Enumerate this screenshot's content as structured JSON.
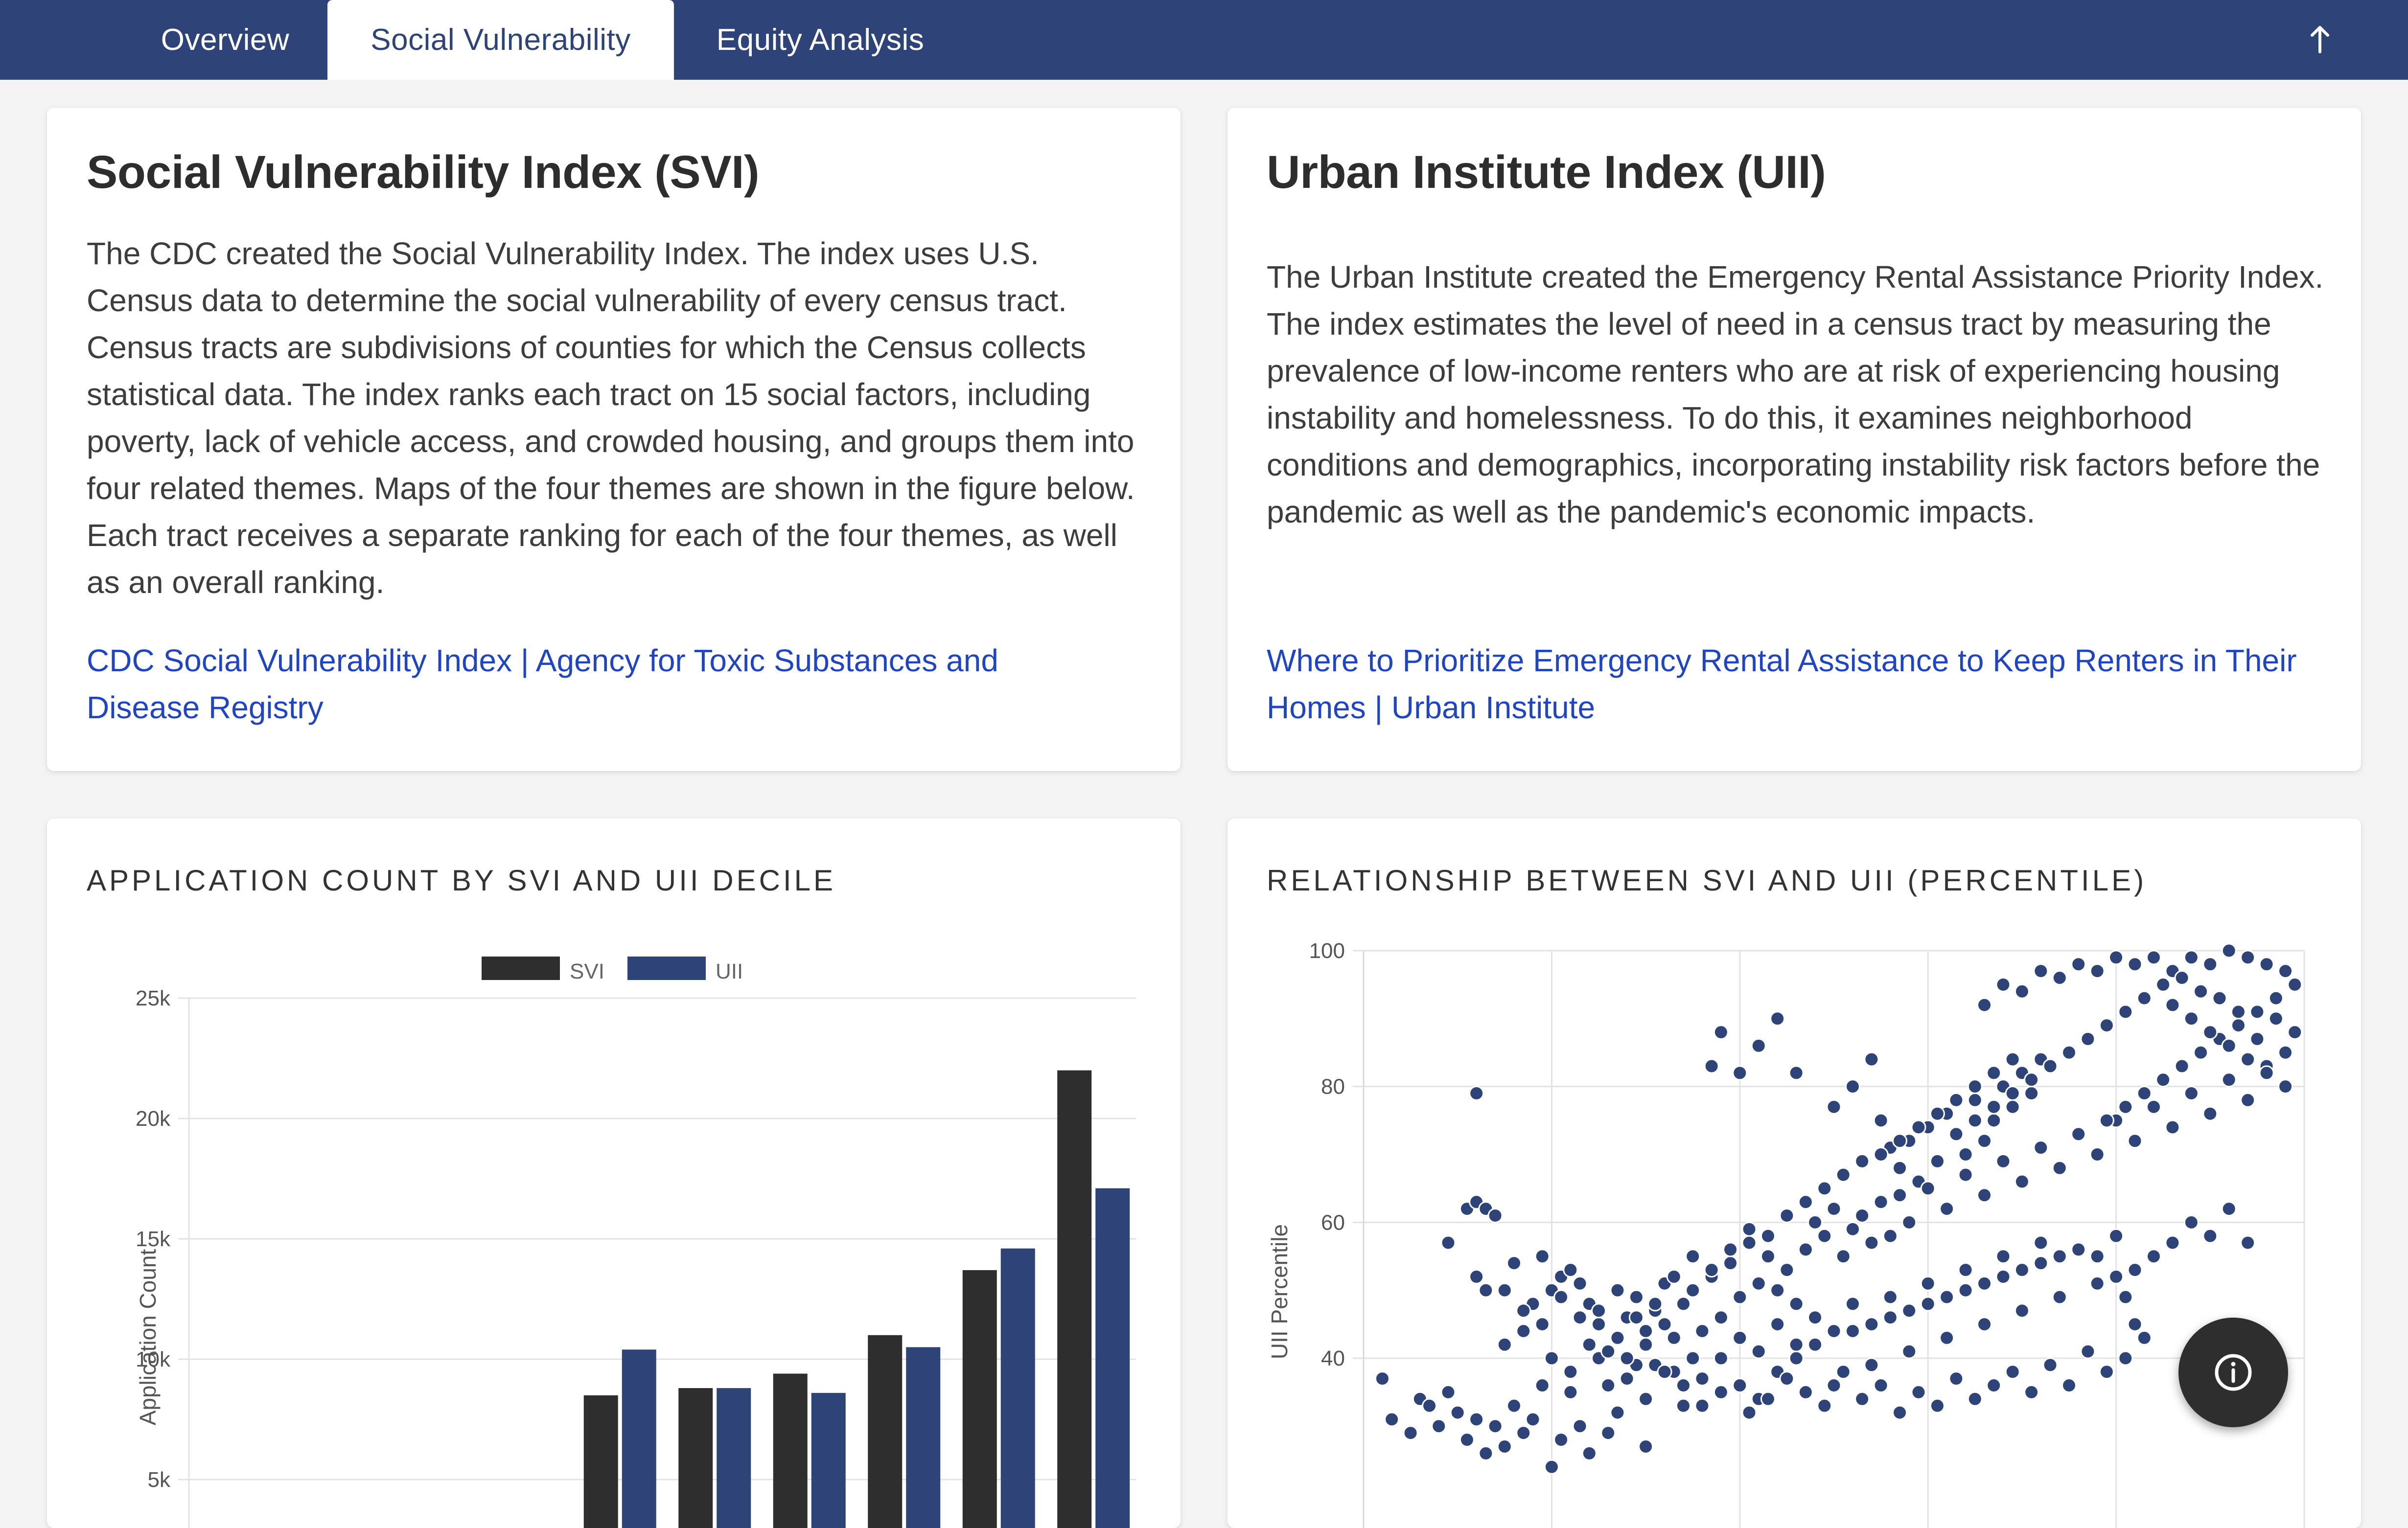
{
  "tabs": [
    {
      "label": "Overview"
    },
    {
      "label": "Social Vulnerability"
    },
    {
      "label": "Equity Analysis"
    }
  ],
  "active_tab": "Social Vulnerability",
  "icons": {
    "scroll_top": "arrow-up-icon",
    "info": "info-icon"
  },
  "colors": {
    "nav": "#2e4378",
    "svi": "#2e2e2e",
    "uii": "#2e4378",
    "link": "#1f45c4"
  },
  "svi_card": {
    "title": "Social Vulnerability Index (SVI)",
    "body": "The CDC created the Social Vulnerability Index. The index uses U.S. Census data to determine the social vulnerability of every census tract. Census tracts are subdivisions of counties for which the Census collects statistical data. The index ranks each tract on 15 social factors, including poverty, lack of vehicle access, and crowded housing, and groups them into four related themes. Maps of the four themes are shown in the figure below. Each tract receives a separate ranking for each of the four themes, as well as an overall ranking.",
    "link": "CDC Social Vulnerability Index | Agency for Toxic Substances and Disease Registry"
  },
  "uii_card": {
    "title": "Urban Institute Index (UII)",
    "body": "The Urban Institute created the Emergency Rental Assistance Priority Index. The index estimates the level of need in a census tract by measuring the prevalence of low-income renters who are at risk of experiencing housing instability and homelessness. To do this, it examines neighborhood conditions and demographics, incorporating instability risk factors before the pandemic as well as the pandemic's economic impacts.",
    "link": "Where to Prioritize Emergency Rental Assistance to Keep Renters in Their Homes | Urban Institute"
  },
  "chart_data": [
    {
      "type": "bar",
      "title": "APPLICATION COUNT BY SVI AND UII DECILE",
      "ylabel": "Application Count",
      "xlabel": "",
      "yticks": [
        "25k",
        "20k",
        "15k",
        "10k",
        "5k"
      ],
      "ytick_values": [
        25000,
        20000,
        15000,
        10000,
        5000
      ],
      "ylim": [
        0,
        25000
      ],
      "legend_position": "top-center",
      "series": [
        {
          "name": "SVI",
          "color": "#2e2e2e",
          "values": [
            null,
            null,
            null,
            null,
            8500,
            8800,
            9400,
            11000,
            13700,
            22000
          ]
        },
        {
          "name": "UII",
          "color": "#2e4378",
          "values": [
            null,
            null,
            null,
            null,
            10400,
            8800,
            8600,
            10500,
            14600,
            17100
          ]
        }
      ],
      "grid": true
    },
    {
      "type": "scatter",
      "title": "RELATIONSHIP BETWEEN SVI AND UII (PERCENTILE)",
      "ylabel": "UII Percentile",
      "xlabel": "",
      "yticks": [
        "100",
        "80",
        "60",
        "40"
      ],
      "ytick_values": [
        100,
        80,
        60,
        40
      ],
      "xlim": [
        0,
        100
      ],
      "ylim": [
        33,
        100
      ],
      "grid": true,
      "color": "#2e4378",
      "points": [
        [
          2,
          37
        ],
        [
          3,
          31
        ],
        [
          5,
          29
        ],
        [
          6,
          34
        ],
        [
          7,
          33
        ],
        [
          8,
          30
        ],
        [
          9,
          35
        ],
        [
          10,
          32
        ],
        [
          11,
          28
        ],
        [
          12,
          31
        ],
        [
          13,
          26
        ],
        [
          14,
          30
        ],
        [
          15,
          27
        ],
        [
          16,
          33
        ],
        [
          17,
          29
        ],
        [
          18,
          31
        ],
        [
          19,
          36
        ],
        [
          20,
          24
        ],
        [
          21,
          28
        ],
        [
          22,
          35
        ],
        [
          23,
          30
        ],
        [
          24,
          26
        ],
        [
          25,
          40
        ],
        [
          26,
          29
        ],
        [
          27,
          32
        ],
        [
          28,
          37
        ],
        [
          29,
          39
        ],
        [
          30,
          27
        ],
        [
          11,
          62
        ],
        [
          12,
          63
        ],
        [
          9,
          57
        ],
        [
          13,
          62
        ],
        [
          14,
          61
        ],
        [
          15,
          42
        ],
        [
          12,
          52
        ],
        [
          13,
          50
        ],
        [
          16,
          54
        ],
        [
          17,
          44
        ],
        [
          18,
          48
        ],
        [
          19,
          55
        ],
        [
          20,
          50
        ],
        [
          21,
          52
        ],
        [
          22,
          53
        ],
        [
          23,
          46
        ],
        [
          24,
          48
        ],
        [
          25,
          45
        ],
        [
          26,
          41
        ],
        [
          27,
          43
        ],
        [
          28,
          46
        ],
        [
          29,
          49
        ],
        [
          30,
          44
        ],
        [
          31,
          47
        ],
        [
          32,
          51
        ],
        [
          33,
          38
        ],
        [
          34,
          36
        ],
        [
          35,
          40
        ],
        [
          30,
          42
        ],
        [
          31,
          39
        ],
        [
          32,
          45
        ],
        [
          33,
          43
        ],
        [
          34,
          48
        ],
        [
          35,
          50
        ],
        [
          36,
          44
        ],
        [
          37,
          52
        ],
        [
          38,
          46
        ],
        [
          39,
          54
        ],
        [
          40,
          49
        ],
        [
          41,
          57
        ],
        [
          42,
          51
        ],
        [
          43,
          55
        ],
        [
          44,
          50
        ],
        [
          45,
          53
        ],
        [
          46,
          48
        ],
        [
          47,
          56
        ],
        [
          48,
          60
        ],
        [
          49,
          58
        ],
        [
          50,
          62
        ],
        [
          51,
          55
        ],
        [
          52,
          59
        ],
        [
          53,
          61
        ],
        [
          54,
          57
        ],
        [
          55,
          63
        ],
        [
          56,
          58
        ],
        [
          57,
          64
        ],
        [
          58,
          60
        ],
        [
          12,
          79
        ],
        [
          37,
          83
        ],
        [
          38,
          88
        ],
        [
          40,
          82
        ],
        [
          42,
          86
        ],
        [
          44,
          90
        ],
        [
          46,
          82
        ],
        [
          50,
          77
        ],
        [
          52,
          80
        ],
        [
          54,
          84
        ],
        [
          55,
          75
        ],
        [
          56,
          71
        ],
        [
          57,
          68
        ],
        [
          58,
          72
        ],
        [
          59,
          66
        ],
        [
          60,
          74
        ],
        [
          61,
          69
        ],
        [
          62,
          76
        ],
        [
          63,
          73
        ],
        [
          64,
          70
        ],
        [
          65,
          78
        ],
        [
          66,
          72
        ],
        [
          67,
          75
        ],
        [
          68,
          80
        ],
        [
          69,
          77
        ],
        [
          70,
          82
        ],
        [
          71,
          79
        ],
        [
          72,
          84
        ],
        [
          60,
          65
        ],
        [
          62,
          62
        ],
        [
          64,
          67
        ],
        [
          66,
          64
        ],
        [
          68,
          69
        ],
        [
          70,
          66
        ],
        [
          72,
          71
        ],
        [
          74,
          68
        ],
        [
          76,
          73
        ],
        [
          78,
          70
        ],
        [
          80,
          75
        ],
        [
          82,
          72
        ],
        [
          84,
          77
        ],
        [
          86,
          74
        ],
        [
          88,
          79
        ],
        [
          90,
          76
        ],
        [
          92,
          81
        ],
        [
          94,
          78
        ],
        [
          96,
          83
        ],
        [
          98,
          80
        ],
        [
          66,
          92
        ],
        [
          68,
          95
        ],
        [
          70,
          94
        ],
        [
          72,
          97
        ],
        [
          74,
          96
        ],
        [
          76,
          98
        ],
        [
          78,
          97
        ],
        [
          80,
          99
        ],
        [
          82,
          98
        ],
        [
          84,
          99
        ],
        [
          86,
          97
        ],
        [
          88,
          99
        ],
        [
          90,
          98
        ],
        [
          92,
          100
        ],
        [
          94,
          99
        ],
        [
          96,
          98
        ],
        [
          98,
          97
        ],
        [
          99,
          95
        ],
        [
          97,
          93
        ],
        [
          95,
          91
        ],
        [
          93,
          89
        ],
        [
          91,
          87
        ],
        [
          89,
          85
        ],
        [
          87,
          83
        ],
        [
          85,
          81
        ],
        [
          83,
          79
        ],
        [
          81,
          77
        ],
        [
          79,
          75
        ],
        [
          86,
          92
        ],
        [
          88,
          90
        ],
        [
          90,
          88
        ],
        [
          92,
          86
        ],
        [
          94,
          84
        ],
        [
          96,
          82
        ],
        [
          98,
          85
        ],
        [
          99,
          88
        ],
        [
          97,
          90
        ],
        [
          95,
          87
        ],
        [
          93,
          91
        ],
        [
          91,
          93
        ],
        [
          89,
          94
        ],
        [
          87,
          96
        ],
        [
          85,
          95
        ],
        [
          83,
          93
        ],
        [
          81,
          91
        ],
        [
          79,
          89
        ],
        [
          77,
          87
        ],
        [
          75,
          85
        ],
        [
          73,
          83
        ],
        [
          71,
          81
        ],
        [
          69,
          79
        ],
        [
          67,
          77
        ],
        [
          65,
          75
        ],
        [
          63,
          73
        ],
        [
          40,
          36
        ],
        [
          42,
          34
        ],
        [
          44,
          38
        ],
        [
          46,
          40
        ],
        [
          48,
          42
        ],
        [
          50,
          36
        ],
        [
          52,
          44
        ],
        [
          54,
          39
        ],
        [
          56,
          46
        ],
        [
          58,
          41
        ],
        [
          60,
          48
        ],
        [
          62,
          43
        ],
        [
          64,
          50
        ],
        [
          66,
          45
        ],
        [
          68,
          52
        ],
        [
          70,
          47
        ],
        [
          72,
          54
        ],
        [
          74,
          49
        ],
        [
          76,
          56
        ],
        [
          78,
          51
        ],
        [
          80,
          58
        ],
        [
          82,
          53
        ],
        [
          84,
          55
        ],
        [
          86,
          57
        ],
        [
          88,
          60
        ],
        [
          90,
          58
        ],
        [
          92,
          62
        ],
        [
          94,
          57
        ],
        [
          36,
          33
        ],
        [
          38,
          35
        ],
        [
          41,
          32
        ],
        [
          43,
          34
        ],
        [
          45,
          37
        ],
        [
          47,
          35
        ],
        [
          49,
          33
        ],
        [
          51,
          38
        ],
        [
          53,
          34
        ],
        [
          55,
          36
        ],
        [
          57,
          32
        ],
        [
          59,
          35
        ],
        [
          61,
          33
        ],
        [
          63,
          37
        ],
        [
          65,
          34
        ],
        [
          67,
          36
        ],
        [
          69,
          38
        ],
        [
          71,
          35
        ],
        [
          73,
          39
        ],
        [
          75,
          36
        ],
        [
          77,
          41
        ],
        [
          79,
          38
        ],
        [
          81,
          40
        ],
        [
          83,
          43
        ],
        [
          82,
          45
        ],
        [
          81,
          49
        ],
        [
          80,
          52
        ],
        [
          78,
          55
        ],
        [
          20,
          40
        ],
        [
          22,
          38
        ],
        [
          24,
          42
        ],
        [
          26,
          36
        ],
        [
          28,
          40
        ],
        [
          30,
          34
        ],
        [
          32,
          38
        ],
        [
          34,
          33
        ],
        [
          36,
          37
        ],
        [
          38,
          40
        ],
        [
          40,
          43
        ],
        [
          42,
          41
        ],
        [
          44,
          45
        ],
        [
          46,
          42
        ],
        [
          48,
          46
        ],
        [
          50,
          44
        ],
        [
          52,
          48
        ],
        [
          54,
          45
        ],
        [
          56,
          49
        ],
        [
          58,
          47
        ],
        [
          60,
          51
        ],
        [
          62,
          49
        ],
        [
          64,
          53
        ],
        [
          66,
          51
        ],
        [
          68,
          55
        ],
        [
          70,
          53
        ],
        [
          72,
          57
        ],
        [
          74,
          55
        ],
        [
          15,
          50
        ],
        [
          17,
          47
        ],
        [
          19,
          45
        ],
        [
          21,
          49
        ],
        [
          23,
          51
        ],
        [
          25,
          47
        ],
        [
          27,
          50
        ],
        [
          29,
          46
        ],
        [
          31,
          48
        ],
        [
          33,
          52
        ],
        [
          35,
          55
        ],
        [
          37,
          53
        ],
        [
          39,
          56
        ],
        [
          41,
          59
        ],
        [
          43,
          58
        ],
        [
          45,
          61
        ],
        [
          47,
          63
        ],
        [
          49,
          65
        ],
        [
          51,
          67
        ],
        [
          53,
          69
        ],
        [
          55,
          70
        ],
        [
          57,
          72
        ],
        [
          59,
          74
        ],
        [
          61,
          76
        ],
        [
          63,
          78
        ],
        [
          65,
          80
        ],
        [
          67,
          82
        ],
        [
          69,
          84
        ]
      ]
    }
  ]
}
